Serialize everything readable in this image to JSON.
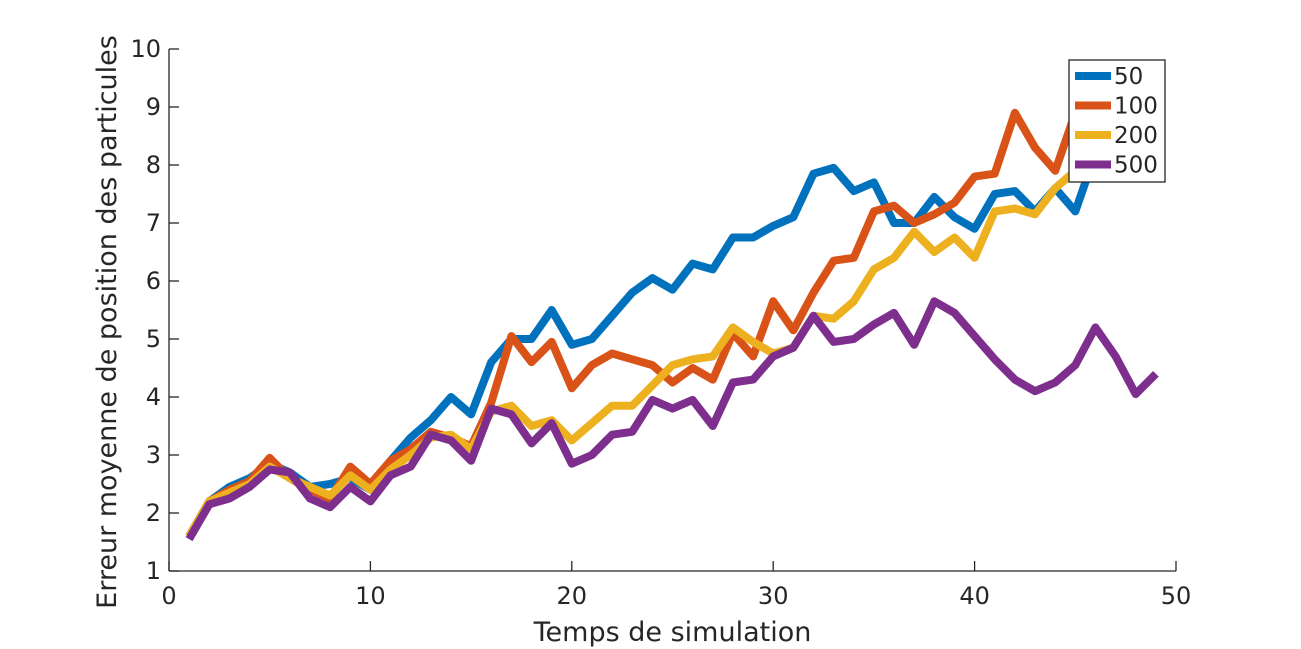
{
  "chart_data": {
    "type": "line",
    "xlabel": "Temps de simulation",
    "ylabel": "Erreur moyenne de position des particules",
    "xlim": [
      0,
      50
    ],
    "ylim": [
      1,
      10
    ],
    "xticks": [
      0,
      10,
      20,
      30,
      40,
      50
    ],
    "yticks": [
      1,
      2,
      3,
      4,
      5,
      6,
      7,
      8,
      9,
      10
    ],
    "grid": false,
    "legend_position": "top-right",
    "x": [
      1,
      2,
      3,
      4,
      5,
      6,
      7,
      8,
      9,
      10,
      11,
      12,
      13,
      14,
      15,
      16,
      17,
      18,
      19,
      20,
      21,
      22,
      23,
      24,
      25,
      26,
      27,
      28,
      29,
      30,
      31,
      32,
      33,
      34,
      35,
      36,
      37,
      38,
      39,
      40,
      41,
      42,
      43,
      44,
      45,
      46,
      47,
      48,
      49
    ],
    "series": [
      {
        "name": "50",
        "color": "#0072BD",
        "values": [
          1.6,
          2.2,
          2.45,
          2.6,
          2.85,
          2.7,
          2.45,
          2.5,
          2.6,
          2.4,
          2.9,
          3.3,
          3.6,
          4.0,
          3.7,
          4.6,
          5.0,
          5.0,
          5.5,
          4.9,
          5.0,
          5.4,
          5.8,
          6.05,
          5.85,
          6.3,
          6.2,
          6.75,
          6.75,
          6.95,
          7.1,
          7.85,
          7.95,
          7.55,
          7.7,
          7.0,
          7.0,
          7.45,
          7.1,
          6.9,
          7.5,
          7.55,
          7.2,
          7.6,
          7.2,
          8.2,
          8.7,
          8.6,
          8.8
        ]
      },
      {
        "name": "100",
        "color": "#D95319",
        "values": [
          1.6,
          2.2,
          2.4,
          2.55,
          2.95,
          2.6,
          2.4,
          2.25,
          2.8,
          2.5,
          2.9,
          3.1,
          3.4,
          3.3,
          3.15,
          3.9,
          5.05,
          4.6,
          4.95,
          4.15,
          4.55,
          4.75,
          4.65,
          4.55,
          4.25,
          4.5,
          4.3,
          5.1,
          4.7,
          5.65,
          5.15,
          5.8,
          6.35,
          6.4,
          7.2,
          7.3,
          7.0,
          7.15,
          7.35,
          7.8,
          7.85,
          8.9,
          8.3,
          7.9,
          8.9,
          8.7,
          8.5,
          8.7,
          8.7
        ]
      },
      {
        "name": "200",
        "color": "#EDB120",
        "values": [
          1.6,
          2.2,
          2.35,
          2.5,
          2.8,
          2.6,
          2.45,
          2.3,
          2.65,
          2.4,
          2.75,
          3.0,
          3.3,
          3.35,
          3.1,
          3.75,
          3.85,
          3.5,
          3.6,
          3.25,
          3.55,
          3.85,
          3.85,
          4.2,
          4.55,
          4.65,
          4.7,
          5.2,
          4.95,
          4.75,
          4.85,
          5.4,
          5.35,
          5.65,
          6.2,
          6.4,
          6.85,
          6.5,
          6.75,
          6.4,
          7.2,
          7.25,
          7.15,
          7.6,
          7.9,
          7.85,
          7.9,
          7.8,
          7.9
        ]
      },
      {
        "name": "500",
        "color": "#7E2F8E",
        "values": [
          1.55,
          2.15,
          2.25,
          2.45,
          2.75,
          2.7,
          2.25,
          2.1,
          2.45,
          2.2,
          2.65,
          2.8,
          3.35,
          3.25,
          2.9,
          3.8,
          3.7,
          3.2,
          3.55,
          2.85,
          3.0,
          3.35,
          3.4,
          3.95,
          3.8,
          3.95,
          3.5,
          4.25,
          4.3,
          4.7,
          4.85,
          5.4,
          4.95,
          5.0,
          5.25,
          5.45,
          4.9,
          5.65,
          5.45,
          5.05,
          4.65,
          4.3,
          4.1,
          4.25,
          4.55,
          5.2,
          4.7,
          4.05,
          4.4
        ]
      }
    ]
  }
}
